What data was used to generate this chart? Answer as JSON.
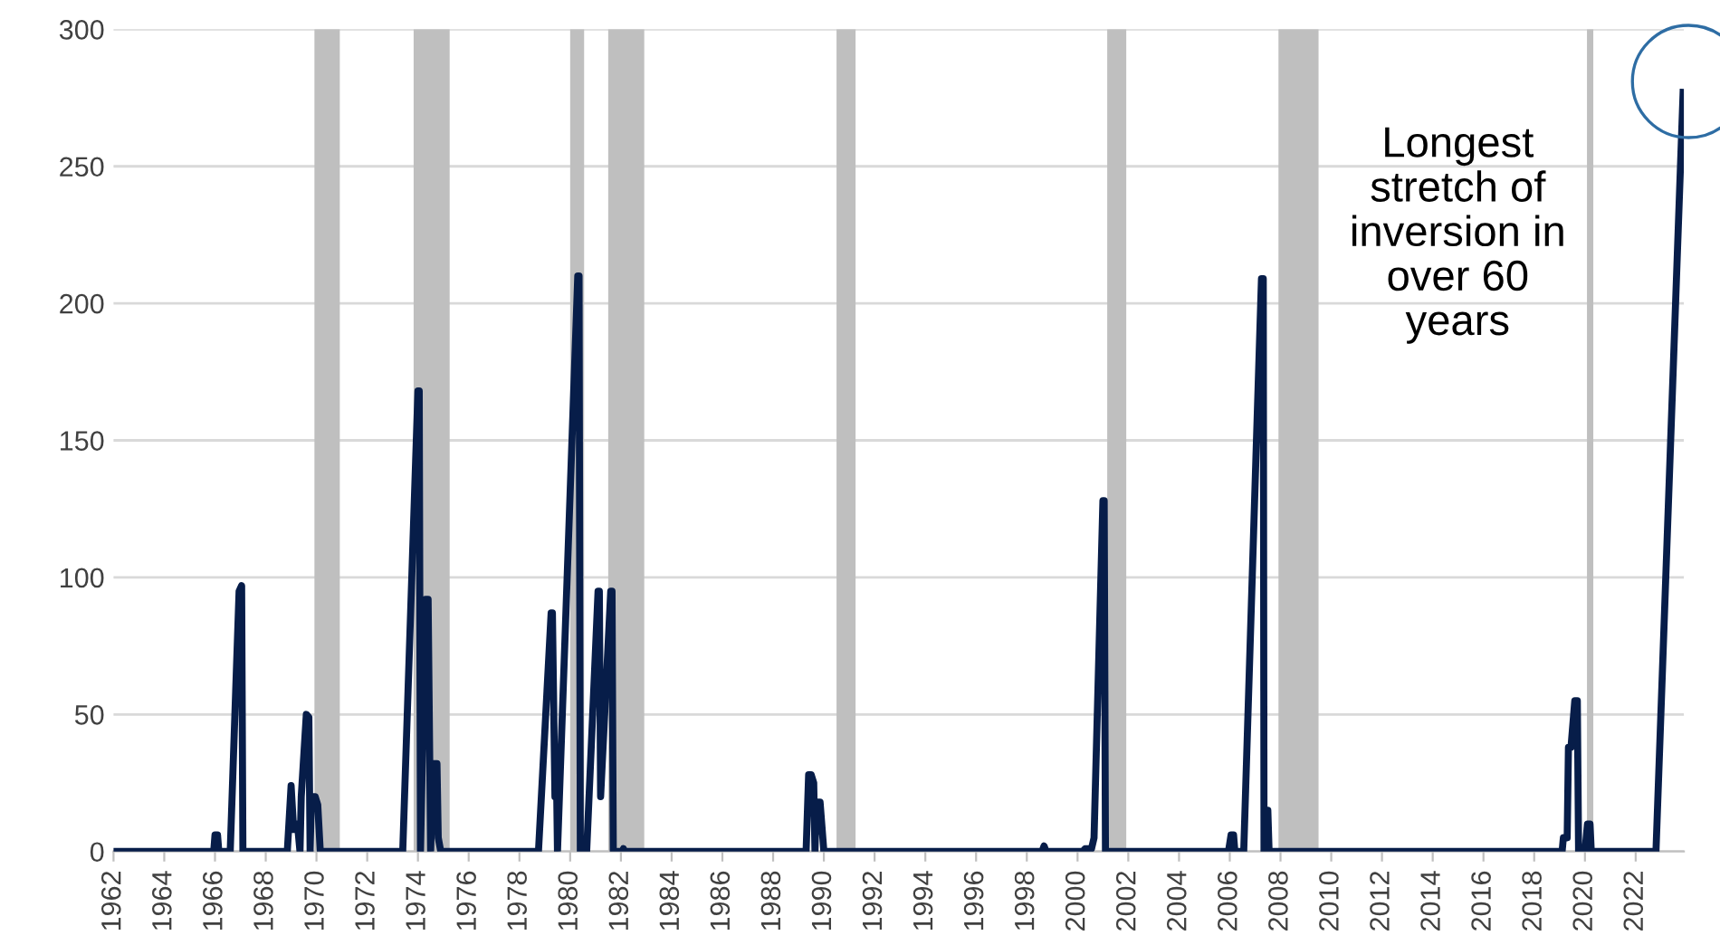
{
  "chart_data": {
    "type": "line",
    "xlim": [
      1962,
      2023.9
    ],
    "xticks": [
      1962,
      1964,
      1966,
      1968,
      1970,
      1972,
      1974,
      1976,
      1978,
      1980,
      1982,
      1984,
      1986,
      1988,
      1990,
      1992,
      1994,
      1996,
      1998,
      2000,
      2002,
      2004,
      2006,
      2008,
      2010,
      2012,
      2014,
      2016,
      2018,
      2020,
      2022
    ],
    "ylim": [
      0,
      300
    ],
    "yticks": [
      0,
      50,
      100,
      150,
      200,
      250,
      300
    ],
    "grid": "y",
    "series": [
      {
        "color": "#071d49",
        "x": [
          1962,
          1965.95,
          1966.0,
          1966.1,
          1966.15,
          1966.6,
          1966.95,
          1967.05,
          1967.1,
          1968.85,
          1969.0,
          1969.1,
          1969.25,
          1969.35,
          1969.4,
          1969.6,
          1969.7,
          1969.75,
          1969.8,
          1969.95,
          1970.05,
          1970.15,
          1973.4,
          1974.0,
          1974.05,
          1974.1,
          1974.3,
          1974.4,
          1974.5,
          1974.6,
          1974.75,
          1974.8,
          1974.9,
          1978.75,
          1979.25,
          1979.3,
          1979.4,
          1979.45,
          1979.5,
          1980.3,
          1980.35,
          1980.4,
          1980.65,
          1981.1,
          1981.15,
          1981.2,
          1981.6,
          1981.65,
          1981.7,
          1982.05,
          1982.1,
          1982.15,
          1989.3,
          1989.4,
          1989.5,
          1989.6,
          1989.65,
          1989.7,
          1989.85,
          1990.0,
          1998.6,
          1998.68,
          1998.76,
          2000.2,
          2000.3,
          2000.55,
          2000.65,
          2001.0,
          2001.05,
          2001.1,
          2005.95,
          2006.05,
          2006.15,
          2006.2,
          2006.55,
          2007.25,
          2007.32,
          2007.35,
          2007.38,
          2007.5,
          2007.55,
          2019.1,
          2019.15,
          2019.3,
          2019.35,
          2019.45,
          2019.6,
          2019.7,
          2019.75,
          2020.0,
          2020.1,
          2020.2,
          2020.25,
          2022.8,
          2023.87
        ],
        "values": [
          0,
          0,
          6,
          6,
          0,
          0,
          95,
          97,
          0,
          0,
          24,
          8,
          10,
          0,
          20,
          50,
          49,
          0,
          20,
          20,
          17,
          0,
          0,
          168,
          168,
          0,
          92,
          92,
          0,
          32,
          32,
          5,
          0,
          0,
          87,
          87,
          20,
          35,
          0,
          210,
          210,
          0,
          0,
          95,
          95,
          20,
          95,
          95,
          0,
          0,
          1,
          0,
          0,
          28,
          28,
          25,
          0,
          18,
          18,
          0,
          0,
          2,
          0,
          0,
          1,
          1,
          5,
          128,
          128,
          0,
          0,
          6,
          6,
          0,
          0,
          209,
          209,
          0,
          15,
          15,
          0,
          0,
          5,
          5,
          38,
          38,
          55,
          55,
          0,
          0,
          10,
          10,
          0,
          0,
          277
        ]
      }
    ],
    "bands": [
      {
        "axis": "x",
        "from": 1969.92,
        "to": 1970.92,
        "color": "#bfbfbf"
      },
      {
        "axis": "x",
        "from": 1973.83,
        "to": 1975.25,
        "color": "#bfbfbf"
      },
      {
        "axis": "x",
        "from": 1980.0,
        "to": 1980.55,
        "color": "#bfbfbf"
      },
      {
        "axis": "x",
        "from": 1981.5,
        "to": 1982.92,
        "color": "#bfbfbf"
      },
      {
        "axis": "x",
        "from": 1990.5,
        "to": 1991.25,
        "color": "#bfbfbf"
      },
      {
        "axis": "x",
        "from": 2001.17,
        "to": 2001.92,
        "color": "#bfbfbf"
      },
      {
        "axis": "x",
        "from": 2007.92,
        "to": 2009.5,
        "color": "#bfbfbf"
      },
      {
        "axis": "x",
        "from": 2020.08,
        "to": 2020.33,
        "color": "#bfbfbf"
      }
    ],
    "annotations": [
      "Longest\nstretch of\ninversion in\nover 60\nyears"
    ]
  }
}
